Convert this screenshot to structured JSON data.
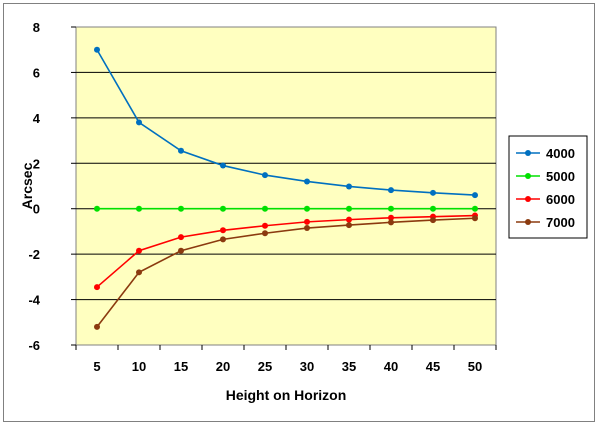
{
  "chart_data": {
    "type": "line",
    "title": "",
    "xlabel": "Height on Horizon",
    "ylabel": "Arcsec",
    "x": [
      5,
      10,
      15,
      20,
      25,
      30,
      35,
      40,
      45,
      50
    ],
    "ylim": [
      -6,
      8
    ],
    "yticks": [
      -6,
      -4,
      -2,
      0,
      2,
      4,
      6,
      8
    ],
    "grid": true,
    "legend_position": "right",
    "plot_background": "#FFFFC0",
    "series": [
      {
        "name": "4000",
        "color": "#0070C0",
        "values": [
          7.0,
          3.8,
          2.55,
          1.9,
          1.48,
          1.2,
          0.98,
          0.82,
          0.7,
          0.6
        ]
      },
      {
        "name": "5000",
        "color": "#00E000",
        "values": [
          0,
          0,
          0,
          0,
          0,
          0,
          0,
          0,
          0,
          0
        ]
      },
      {
        "name": "6000",
        "color": "#FF0000",
        "values": [
          -3.45,
          -1.85,
          -1.25,
          -0.95,
          -0.75,
          -0.58,
          -0.48,
          -0.4,
          -0.35,
          -0.3
        ]
      },
      {
        "name": "7000",
        "color": "#8B3A0F",
        "values": [
          -5.2,
          -2.8,
          -1.85,
          -1.35,
          -1.08,
          -0.85,
          -0.72,
          -0.6,
          -0.5,
          -0.42
        ]
      }
    ]
  }
}
